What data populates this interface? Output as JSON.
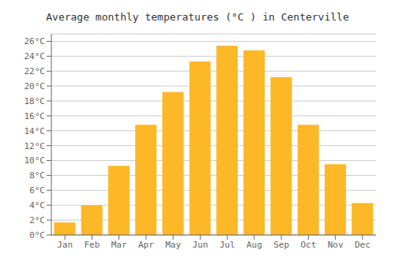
{
  "chart_data": {
    "type": "bar",
    "title": "Average monthly temperatures (°C ) in Centerville",
    "categories": [
      "Jan",
      "Feb",
      "Mar",
      "Apr",
      "May",
      "Jun",
      "Jul",
      "Aug",
      "Sep",
      "Oct",
      "Nov",
      "Dec"
    ],
    "values": [
      1.7,
      4.0,
      9.3,
      14.8,
      19.2,
      23.3,
      25.4,
      24.8,
      21.2,
      14.8,
      9.5,
      4.3
    ],
    "color": "#FDB827",
    "ylim": [
      0,
      27
    ],
    "yticks": [
      {
        "value": 0,
        "label": "0°C"
      },
      {
        "value": 2,
        "label": "2°C"
      },
      {
        "value": 4,
        "label": "4°C"
      },
      {
        "value": 6,
        "label": "6°C"
      },
      {
        "value": 8,
        "label": "8°C"
      },
      {
        "value": 10,
        "label": "10°C"
      },
      {
        "value": 12,
        "label": "12°C"
      },
      {
        "value": 14,
        "label": "14°C"
      },
      {
        "value": 16,
        "label": "16°C"
      },
      {
        "value": 18,
        "label": "18°C"
      },
      {
        "value": 20,
        "label": "20°C"
      },
      {
        "value": 22,
        "label": "22°C"
      },
      {
        "value": 24,
        "label": "24°C"
      },
      {
        "value": 26,
        "label": "26°C"
      }
    ],
    "grid": true
  }
}
